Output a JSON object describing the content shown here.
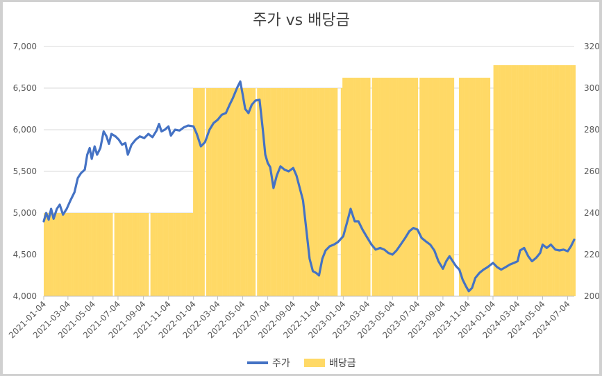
{
  "chart_data": {
    "type": "line+bar",
    "title": "주가 vs 배당금",
    "xlabel": "",
    "ylabel": "",
    "y_left_ticks": [
      "4,000",
      "4,500",
      "5,000",
      "5,500",
      "6,000",
      "6,500",
      "7,000"
    ],
    "y_left_range": [
      4000,
      7000
    ],
    "y_right_ticks": [
      "200",
      "220",
      "240",
      "260",
      "280",
      "300",
      "320"
    ],
    "y_right_range": [
      200,
      320
    ],
    "x_ticks": [
      "2021-01-04",
      "2021-03-04",
      "2021-05-04",
      "2021-07-04",
      "2021-09-04",
      "2021-11-04",
      "2022-01-04",
      "2022-03-04",
      "2022-05-04",
      "2022-07-04",
      "2022-09-04",
      "2022-11-04",
      "2023-01-04",
      "2023-03-04",
      "2023-05-04",
      "2023-07-04",
      "2023-09-04",
      "2023-11-04",
      "2024-01-04",
      "2024-03-04",
      "2024-05-04",
      "2024-07-04"
    ],
    "x_range": [
      "2021-01-04",
      "2024-07-20"
    ],
    "grid": true,
    "legend_position": "bottom",
    "colors": {
      "price": "#4472C4",
      "dividend": "#FFD966"
    },
    "series": [
      {
        "name": "주가",
        "axis": "left",
        "kind": "line",
        "points": [
          [
            "2021-01-04",
            4900
          ],
          [
            "2021-01-10",
            5000
          ],
          [
            "2021-01-16",
            4920
          ],
          [
            "2021-01-22",
            5050
          ],
          [
            "2021-01-28",
            4930
          ],
          [
            "2021-02-05",
            5050
          ],
          [
            "2021-02-12",
            5100
          ],
          [
            "2021-02-20",
            4980
          ],
          [
            "2021-03-01",
            5050
          ],
          [
            "2021-03-10",
            5150
          ],
          [
            "2021-03-20",
            5250
          ],
          [
            "2021-03-28",
            5420
          ],
          [
            "2021-04-05",
            5480
          ],
          [
            "2021-04-14",
            5520
          ],
          [
            "2021-04-20",
            5700
          ],
          [
            "2021-04-26",
            5780
          ],
          [
            "2021-05-01",
            5650
          ],
          [
            "2021-05-08",
            5800
          ],
          [
            "2021-05-14",
            5700
          ],
          [
            "2021-05-22",
            5780
          ],
          [
            "2021-05-30",
            5980
          ],
          [
            "2021-06-06",
            5920
          ],
          [
            "2021-06-12",
            5830
          ],
          [
            "2021-06-18",
            5950
          ],
          [
            "2021-06-28",
            5920
          ],
          [
            "2021-07-06",
            5880
          ],
          [
            "2021-07-14",
            5820
          ],
          [
            "2021-07-22",
            5840
          ],
          [
            "2021-07-28",
            5700
          ],
          [
            "2021-08-06",
            5820
          ],
          [
            "2021-08-16",
            5880
          ],
          [
            "2021-08-26",
            5920
          ],
          [
            "2021-09-06",
            5900
          ],
          [
            "2021-09-16",
            5950
          ],
          [
            "2021-09-26",
            5910
          ],
          [
            "2021-10-06",
            5990
          ],
          [
            "2021-10-12",
            6070
          ],
          [
            "2021-10-18",
            5980
          ],
          [
            "2021-10-26",
            6000
          ],
          [
            "2021-11-04",
            6040
          ],
          [
            "2021-11-10",
            5930
          ],
          [
            "2021-11-20",
            6000
          ],
          [
            "2021-12-01",
            5990
          ],
          [
            "2021-12-12",
            6030
          ],
          [
            "2021-12-22",
            6050
          ],
          [
            "2022-01-04",
            6040
          ],
          [
            "2022-01-12",
            5950
          ],
          [
            "2022-01-22",
            5800
          ],
          [
            "2022-02-01",
            5850
          ],
          [
            "2022-02-12",
            6000
          ],
          [
            "2022-02-22",
            6080
          ],
          [
            "2022-03-04",
            6120
          ],
          [
            "2022-03-14",
            6180
          ],
          [
            "2022-03-24",
            6200
          ],
          [
            "2022-04-02",
            6300
          ],
          [
            "2022-04-10",
            6380
          ],
          [
            "2022-04-20",
            6500
          ],
          [
            "2022-04-28",
            6580
          ],
          [
            "2022-05-04",
            6420
          ],
          [
            "2022-05-10",
            6250
          ],
          [
            "2022-05-18",
            6200
          ],
          [
            "2022-05-26",
            6300
          ],
          [
            "2022-06-04",
            6350
          ],
          [
            "2022-06-14",
            6360
          ],
          [
            "2022-06-22",
            6000
          ],
          [
            "2022-06-28",
            5700
          ],
          [
            "2022-07-04",
            5600
          ],
          [
            "2022-07-10",
            5550
          ],
          [
            "2022-07-18",
            5300
          ],
          [
            "2022-07-26",
            5450
          ],
          [
            "2022-08-04",
            5560
          ],
          [
            "2022-08-14",
            5520
          ],
          [
            "2022-08-24",
            5500
          ],
          [
            "2022-09-04",
            5540
          ],
          [
            "2022-09-12",
            5450
          ],
          [
            "2022-09-20",
            5300
          ],
          [
            "2022-09-28",
            5150
          ],
          [
            "2022-10-06",
            4800
          ],
          [
            "2022-10-14",
            4450
          ],
          [
            "2022-10-22",
            4300
          ],
          [
            "2022-10-30",
            4280
          ],
          [
            "2022-11-06",
            4250
          ],
          [
            "2022-11-14",
            4450
          ],
          [
            "2022-11-22",
            4550
          ],
          [
            "2022-12-02",
            4600
          ],
          [
            "2022-12-12",
            4620
          ],
          [
            "2022-12-22",
            4650
          ],
          [
            "2023-01-04",
            4720
          ],
          [
            "2023-01-14",
            4900
          ],
          [
            "2023-01-22",
            5050
          ],
          [
            "2023-02-01",
            4900
          ],
          [
            "2023-02-10",
            4900
          ],
          [
            "2023-02-20",
            4800
          ],
          [
            "2023-03-04",
            4700
          ],
          [
            "2023-03-14",
            4620
          ],
          [
            "2023-03-24",
            4560
          ],
          [
            "2023-04-04",
            4580
          ],
          [
            "2023-04-14",
            4560
          ],
          [
            "2023-04-24",
            4520
          ],
          [
            "2023-05-04",
            4500
          ],
          [
            "2023-05-14",
            4550
          ],
          [
            "2023-05-24",
            4620
          ],
          [
            "2023-06-04",
            4700
          ],
          [
            "2023-06-14",
            4780
          ],
          [
            "2023-06-24",
            4820
          ],
          [
            "2023-07-04",
            4800
          ],
          [
            "2023-07-14",
            4700
          ],
          [
            "2023-07-24",
            4660
          ],
          [
            "2023-08-04",
            4620
          ],
          [
            "2023-08-14",
            4550
          ],
          [
            "2023-08-24",
            4420
          ],
          [
            "2023-09-04",
            4330
          ],
          [
            "2023-09-12",
            4420
          ],
          [
            "2023-09-20",
            4480
          ],
          [
            "2023-09-28",
            4420
          ],
          [
            "2023-10-06",
            4360
          ],
          [
            "2023-10-14",
            4320
          ],
          [
            "2023-10-22",
            4200
          ],
          [
            "2023-10-30",
            4120
          ],
          [
            "2023-11-06",
            4060
          ],
          [
            "2023-11-14",
            4100
          ],
          [
            "2023-11-22",
            4220
          ],
          [
            "2023-12-02",
            4280
          ],
          [
            "2023-12-12",
            4320
          ],
          [
            "2023-12-22",
            4350
          ],
          [
            "2024-01-04",
            4400
          ],
          [
            "2024-01-14",
            4350
          ],
          [
            "2024-01-24",
            4320
          ],
          [
            "2024-02-04",
            4350
          ],
          [
            "2024-02-14",
            4380
          ],
          [
            "2024-02-24",
            4400
          ],
          [
            "2024-03-04",
            4420
          ],
          [
            "2024-03-10",
            4550
          ],
          [
            "2024-03-20",
            4580
          ],
          [
            "2024-03-30",
            4480
          ],
          [
            "2024-04-08",
            4420
          ],
          [
            "2024-04-18",
            4460
          ],
          [
            "2024-04-28",
            4520
          ],
          [
            "2024-05-04",
            4620
          ],
          [
            "2024-05-14",
            4580
          ],
          [
            "2024-05-24",
            4620
          ],
          [
            "2024-06-04",
            4560
          ],
          [
            "2024-06-14",
            4550
          ],
          [
            "2024-06-24",
            4560
          ],
          [
            "2024-07-04",
            4540
          ],
          [
            "2024-07-12",
            4600
          ],
          [
            "2024-07-20",
            4680
          ]
        ]
      },
      {
        "name": "배당금",
        "axis": "right",
        "kind": "bar",
        "steps": [
          {
            "from": "2021-01-04",
            "to": "2021-12-31",
            "value": 240
          },
          {
            "from": "2022-01-01",
            "to": "2022-12-31",
            "value": 300
          },
          {
            "from": "2023-01-01",
            "to": "2023-12-31",
            "value": 305
          },
          {
            "from": "2024-01-01",
            "to": "2024-07-20",
            "value": 311
          }
        ]
      }
    ]
  }
}
